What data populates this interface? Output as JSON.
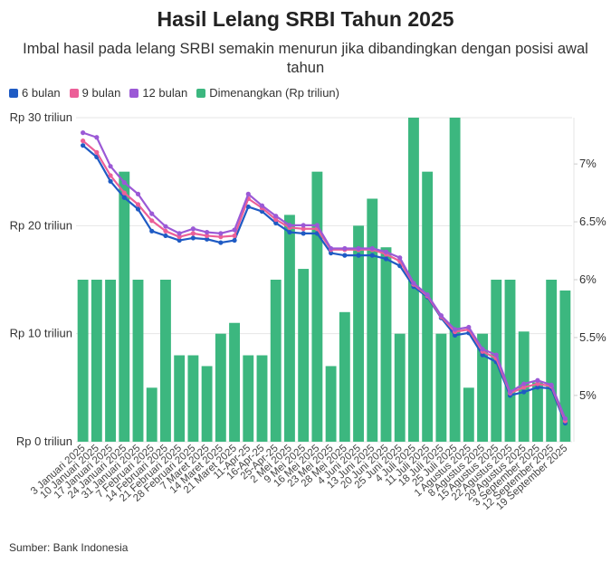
{
  "chart_data": {
    "type": "bar+line",
    "title": "Hasil Lelang SRBI Tahun 2025",
    "subtitle": "Imbal hasil pada lelang SRBI semakin menurun jika dibandingkan dengan posisi awal tahun",
    "source": "Sumber: Bank Indonesia",
    "categories": [
      "3 Januari 2025",
      "10 Januari 2025",
      "17 Januari 2025",
      "24 Januari 2025",
      "31 Januari 2025",
      "7 Februari 2025",
      "14 Februari 2025",
      "21 Februari 2025",
      "28 Februari 2025",
      "7 Maret 2025",
      "14 Maret 2025",
      "21 Maret 2025",
      "11-Apr-25",
      "16-Apr-25",
      "25-Apr-25",
      "2 Mei 2025",
      "9 Mei 2025",
      "16 Mei 2025",
      "23 Mei 2025",
      "28 Mei 2025",
      "4 Juni 2025",
      "13 Juni 2025",
      "20 Juni 2025",
      "25 Juni 2025",
      "4 Juli 2025",
      "11 Juli 2025",
      "18 Juli 2025",
      "25 Juli 2025",
      "1 Agustus 2025",
      "8 Agustus 2025",
      "15 Agustus 2025",
      "22 Agustus 2025",
      "29 Agustus 2025",
      "3 September 2025",
      "12 September 2025",
      "19 September 2025"
    ],
    "bar_series": {
      "name": "Dimenangkan (Rp triliun)",
      "color": "#3cb77f",
      "values": [
        15,
        15,
        15,
        25,
        15,
        5,
        15,
        8,
        8,
        7,
        10,
        11,
        8,
        8,
        15,
        21,
        16,
        25,
        7,
        12,
        20,
        22.5,
        18,
        10,
        30,
        25,
        10,
        30,
        5,
        10,
        15,
        15,
        10.2,
        5.5,
        15,
        14
      ]
    },
    "line_series": [
      {
        "name": "6 bulan",
        "color": "#1f5bc4",
        "values": [
          7.16,
          7.06,
          6.85,
          6.71,
          6.61,
          6.42,
          6.38,
          6.34,
          6.36,
          6.35,
          6.32,
          6.34,
          6.63,
          6.59,
          6.49,
          6.41,
          6.4,
          6.4,
          6.23,
          6.21,
          6.21,
          6.21,
          6.18,
          6.12,
          5.94,
          5.85,
          5.67,
          5.52,
          5.54,
          5.35,
          5.29,
          5.0,
          5.03,
          5.07,
          5.06,
          4.76
        ]
      },
      {
        "name": "9 bulan",
        "color": "#ec5f98",
        "values": [
          7.2,
          7.1,
          6.9,
          6.75,
          6.65,
          6.51,
          6.42,
          6.37,
          6.4,
          6.38,
          6.37,
          6.38,
          6.7,
          6.62,
          6.52,
          6.45,
          6.44,
          6.44,
          6.26,
          6.26,
          6.26,
          6.26,
          6.22,
          6.16,
          5.96,
          5.86,
          5.68,
          5.55,
          5.57,
          5.38,
          5.32,
          5.02,
          5.07,
          5.1,
          5.08,
          4.78
        ]
      },
      {
        "name": "12 bulan",
        "color": "#9b59d6",
        "values": [
          7.27,
          7.23,
          6.98,
          6.84,
          6.74,
          6.57,
          6.46,
          6.4,
          6.44,
          6.41,
          6.4,
          6.43,
          6.74,
          6.64,
          6.55,
          6.47,
          6.47,
          6.47,
          6.27,
          6.27,
          6.27,
          6.27,
          6.24,
          6.19,
          5.97,
          5.87,
          5.69,
          5.57,
          5.59,
          5.4,
          5.35,
          5.03,
          5.1,
          5.13,
          5.09,
          4.8
        ]
      }
    ],
    "left_axis": {
      "range": [
        0,
        30
      ],
      "ticks": [
        0,
        10,
        20,
        30
      ],
      "tick_labels": [
        "Rp 0 triliun",
        "Rp 10 triliun",
        "Rp 20 triliun",
        "Rp 30 triliun"
      ]
    },
    "right_axis": {
      "range": [
        4.6,
        7.4
      ],
      "ticks": [
        5,
        5.5,
        6,
        6.5,
        7
      ],
      "tick_labels": [
        "5%",
        "5.5%",
        "6%",
        "6.5%",
        "7%"
      ]
    },
    "grid": true,
    "legend_position": "top-left"
  }
}
